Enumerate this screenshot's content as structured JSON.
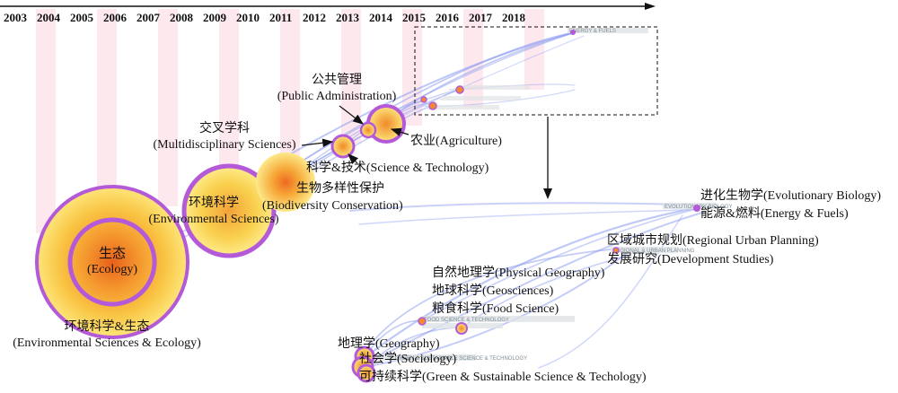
{
  "colors": {
    "stripe": "#fde8ee",
    "node_ring": "#b45ad8",
    "edge": "#8a9af0",
    "node_outer": "#fde67a",
    "node_inner": "#f08a2a",
    "tiny_label": "#8896a0"
  },
  "timeline": {
    "years": [
      "2003",
      "2004",
      "2005",
      "2006",
      "2007",
      "2008",
      "2009",
      "2010",
      "2011",
      "2012",
      "2013",
      "2014",
      "2015",
      "2016",
      "2017",
      "2018"
    ]
  },
  "main_labels": {
    "ecology_cn": "生态",
    "ecology_en": "(Ecology)",
    "env_ecology_cn": "环境科学&生态",
    "env_ecology_en": "(Environmental Sciences & Ecology)",
    "env_sci_cn": "环境科学",
    "env_sci_en": "(Environmental Sciences)",
    "biodiv_cn": "生物多样性保护",
    "biodiv_en": "(Biodiversity Conservation)",
    "multi_cn": "交叉学科",
    "multi_en": "(Multidisciplinary Sciences)",
    "pubadmin_cn": "公共管理",
    "pubadmin_en": "(Public Administration)",
    "scitech": "科学&技术(Science & Technology)",
    "agri": "农业(Agriculture)"
  },
  "zoom_labels": {
    "evo_bio": "进化生物学(Evolutionary Biology)",
    "energy": "能源&燃料(Energy & Fuels)",
    "regional": "区域城市规划(Regional Urban Planning)",
    "devstudies": "发展研究(Development Studies)",
    "phys_geo": "自然地理学(Physical Geography)",
    "geosci": "地球科学(Geosciences)",
    "food_sci": "粮食科学(Food Science)",
    "geography": "地理学(Geography)",
    "sociology": "社会学(Sociology)",
    "green": "可持续科学(Green & Sustainable Science & Techology)"
  },
  "tiny_labels": {
    "energy_fuels": "ENERGY & FUELS",
    "evolutionary": "EVOLUTIONARY BIOLOGY",
    "regional": "REGIONAL & URBAN PLANNING",
    "development": "DEVELOPMENT STUDIES",
    "food_scitech": "FOOD SCIENCE & TECHNOLOGY",
    "physical_geo": "PHYSICAL GEOGRAPHY",
    "geosciences": "GEOSCIENCES, MULTIDISCIPLINARY",
    "geography": "GEOGRAPHY",
    "sociology": "SOCIOLOGY",
    "green_tech": "GREEN & SUSTAINABLE SCIENCE & TECHNOLOGY"
  }
}
